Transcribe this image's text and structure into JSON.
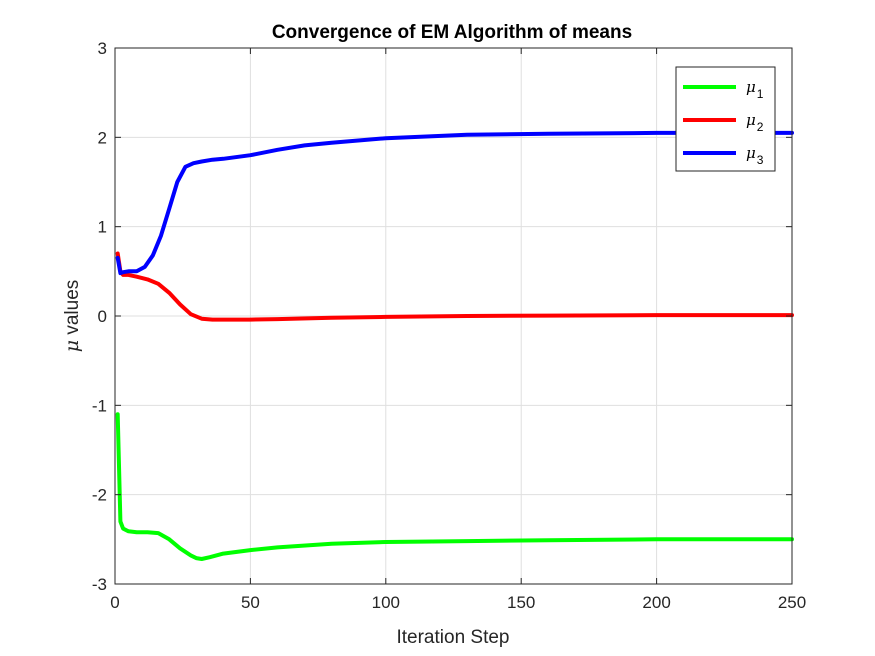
{
  "chart_data": {
    "type": "line",
    "title": "Convergence of EM Algorithm of means",
    "xlabel": "Iteration Step",
    "ylabel": {
      "symbol": "μ",
      "text": " values"
    },
    "xlim": [
      0,
      250
    ],
    "ylim": [
      -3,
      3
    ],
    "xticks": [
      0,
      50,
      100,
      150,
      200,
      250
    ],
    "yticks": [
      -3,
      -2,
      -1,
      0,
      1,
      2,
      3
    ],
    "xtick_labels": [
      "0",
      "50",
      "100",
      "150",
      "200",
      "250"
    ],
    "ytick_labels": [
      "-3",
      "-2",
      "-1",
      "0",
      "1",
      "2",
      "3"
    ],
    "grid": true,
    "legend_position": "top-right",
    "series": [
      {
        "name": "μ1",
        "symbol": "μ",
        "subscript": "1",
        "color": "#00ff00",
        "x": [
          1,
          2,
          3,
          5,
          8,
          12,
          16,
          20,
          24,
          28,
          30,
          32,
          35,
          40,
          50,
          60,
          80,
          100,
          130,
          160,
          200,
          250
        ],
        "y": [
          -1.1,
          -2.3,
          -2.38,
          -2.41,
          -2.42,
          -2.42,
          -2.43,
          -2.5,
          -2.6,
          -2.68,
          -2.71,
          -2.72,
          -2.7,
          -2.66,
          -2.62,
          -2.59,
          -2.55,
          -2.53,
          -2.52,
          -2.51,
          -2.5,
          -2.5
        ]
      },
      {
        "name": "μ2",
        "symbol": "μ",
        "subscript": "2",
        "color": "#ff0000",
        "x": [
          1,
          2,
          3,
          5,
          8,
          12,
          16,
          20,
          24,
          28,
          32,
          36,
          40,
          50,
          60,
          80,
          100,
          130,
          160,
          200,
          250
        ],
        "y": [
          0.7,
          0.5,
          0.46,
          0.46,
          0.44,
          0.41,
          0.36,
          0.26,
          0.13,
          0.02,
          -0.03,
          -0.04,
          -0.04,
          -0.04,
          -0.035,
          -0.02,
          -0.01,
          0.0,
          0.005,
          0.01,
          0.01
        ]
      },
      {
        "name": "μ3",
        "symbol": "μ",
        "subscript": "3",
        "color": "#0000ff",
        "x": [
          1,
          2,
          3,
          5,
          8,
          11,
          14,
          17,
          20,
          23,
          26,
          29,
          32,
          36,
          40,
          50,
          60,
          70,
          80,
          100,
          130,
          160,
          200,
          250
        ],
        "y": [
          0.65,
          0.48,
          0.49,
          0.5,
          0.5,
          0.55,
          0.68,
          0.9,
          1.2,
          1.5,
          1.67,
          1.71,
          1.73,
          1.75,
          1.76,
          1.8,
          1.86,
          1.91,
          1.94,
          1.99,
          2.03,
          2.04,
          2.05,
          2.05
        ]
      }
    ]
  }
}
